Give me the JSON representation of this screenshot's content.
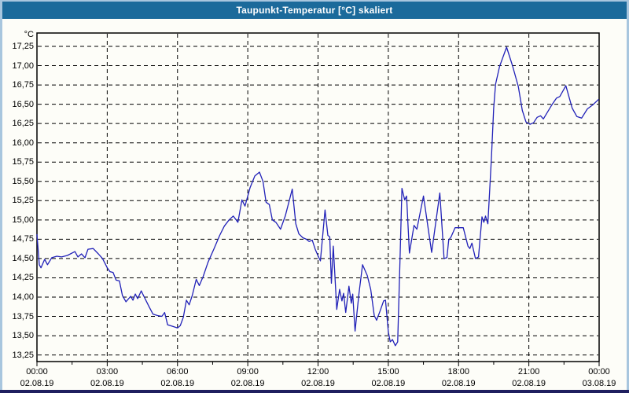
{
  "window": {
    "title": "Taupunkt-Temperatur [°C] skaliert",
    "title_bar_color": "#1b6a9b",
    "border_color": "#a8c6de",
    "bottom_border_color": "#1f1f5f",
    "background": "#fdfdf8"
  },
  "chart_data": {
    "type": "line",
    "title": "Taupunkt-Temperatur [°C] skaliert",
    "y_unit_label": "°C",
    "ylim": [
      13.25,
      17.25
    ],
    "xlim_hours": [
      0,
      24
    ],
    "grid": "dashed",
    "legend": "none",
    "line_color": "#2121b8",
    "plot_background": "#fdfdf8",
    "y_ticks": [
      "17,25",
      "17,00",
      "16,75",
      "16,50",
      "16,25",
      "16,00",
      "15,75",
      "15,50",
      "15,25",
      "15,00",
      "14,75",
      "14,50",
      "14,25",
      "14,00",
      "13,75",
      "13,50",
      "13,25"
    ],
    "x_ticks": [
      {
        "time": "00:00",
        "date": "02.08.19"
      },
      {
        "time": "03:00",
        "date": "02.08.19"
      },
      {
        "time": "06:00",
        "date": "02.08.19"
      },
      {
        "time": "09:00",
        "date": "02.08.19"
      },
      {
        "time": "12:00",
        "date": "02.08.19"
      },
      {
        "time": "15:00",
        "date": "02.08.19"
      },
      {
        "time": "18:00",
        "date": "02.08.19"
      },
      {
        "time": "21:00",
        "date": "02.08.19"
      },
      {
        "time": "00:00",
        "date": "03.08.19"
      }
    ],
    "series": [
      {
        "name": "Taupunkt-Temperatur",
        "points": [
          [
            0.0,
            14.81
          ],
          [
            0.1,
            14.42
          ],
          [
            0.17,
            14.38
          ],
          [
            0.33,
            14.49
          ],
          [
            0.45,
            14.42
          ],
          [
            0.63,
            14.51
          ],
          [
            0.85,
            14.53
          ],
          [
            1.05,
            14.52
          ],
          [
            1.3,
            14.54
          ],
          [
            1.62,
            14.59
          ],
          [
            1.75,
            14.52
          ],
          [
            1.9,
            14.56
          ],
          [
            2.05,
            14.51
          ],
          [
            2.18,
            14.62
          ],
          [
            2.4,
            14.63
          ],
          [
            2.62,
            14.56
          ],
          [
            2.8,
            14.5
          ],
          [
            3.0,
            14.38
          ],
          [
            3.12,
            14.33
          ],
          [
            3.25,
            14.32
          ],
          [
            3.38,
            14.22
          ],
          [
            3.52,
            14.21
          ],
          [
            3.65,
            14.02
          ],
          [
            3.8,
            13.94
          ],
          [
            4.0,
            14.01
          ],
          [
            4.1,
            13.96
          ],
          [
            4.2,
            14.04
          ],
          [
            4.3,
            13.98
          ],
          [
            4.45,
            14.08
          ],
          [
            4.6,
            13.99
          ],
          [
            4.78,
            13.88
          ],
          [
            4.95,
            13.78
          ],
          [
            5.15,
            13.76
          ],
          [
            5.33,
            13.75
          ],
          [
            5.45,
            13.8
          ],
          [
            5.58,
            13.64
          ],
          [
            5.8,
            13.62
          ],
          [
            6.0,
            13.6
          ],
          [
            6.12,
            13.63
          ],
          [
            6.25,
            13.74
          ],
          [
            6.38,
            13.96
          ],
          [
            6.5,
            13.9
          ],
          [
            6.63,
            14.02
          ],
          [
            6.8,
            14.23
          ],
          [
            6.93,
            14.15
          ],
          [
            7.1,
            14.27
          ],
          [
            7.3,
            14.45
          ],
          [
            7.55,
            14.62
          ],
          [
            7.8,
            14.8
          ],
          [
            8.0,
            14.92
          ],
          [
            8.2,
            15.0
          ],
          [
            8.38,
            15.05
          ],
          [
            8.58,
            14.97
          ],
          [
            8.75,
            15.26
          ],
          [
            8.88,
            15.18
          ],
          [
            9.1,
            15.42
          ],
          [
            9.3,
            15.57
          ],
          [
            9.5,
            15.62
          ],
          [
            9.65,
            15.5
          ],
          [
            9.78,
            15.23
          ],
          [
            9.92,
            15.2
          ],
          [
            10.05,
            15.0
          ],
          [
            10.2,
            14.97
          ],
          [
            10.4,
            14.88
          ],
          [
            10.6,
            15.05
          ],
          [
            10.9,
            15.4
          ],
          [
            11.05,
            14.95
          ],
          [
            11.18,
            14.82
          ],
          [
            11.35,
            14.77
          ],
          [
            11.5,
            14.75
          ],
          [
            11.62,
            14.72
          ],
          [
            11.75,
            14.74
          ],
          [
            11.88,
            14.62
          ],
          [
            12.02,
            14.52
          ],
          [
            12.1,
            14.47
          ],
          [
            12.3,
            15.13
          ],
          [
            12.42,
            14.8
          ],
          [
            12.5,
            14.78
          ],
          [
            12.57,
            14.18
          ],
          [
            12.65,
            14.66
          ],
          [
            12.8,
            13.84
          ],
          [
            12.92,
            14.1
          ],
          [
            13.02,
            13.95
          ],
          [
            13.09,
            14.05
          ],
          [
            13.18,
            13.8
          ],
          [
            13.32,
            14.14
          ],
          [
            13.42,
            13.92
          ],
          [
            13.48,
            14.04
          ],
          [
            13.58,
            13.56
          ],
          [
            13.75,
            14.05
          ],
          [
            13.9,
            14.42
          ],
          [
            14.1,
            14.28
          ],
          [
            14.25,
            14.1
          ],
          [
            14.4,
            13.76
          ],
          [
            14.5,
            13.7
          ],
          [
            14.65,
            13.82
          ],
          [
            14.8,
            13.95
          ],
          [
            14.88,
            13.96
          ],
          [
            15.0,
            13.55
          ],
          [
            15.08,
            13.42
          ],
          [
            15.18,
            13.45
          ],
          [
            15.3,
            13.37
          ],
          [
            15.4,
            13.42
          ],
          [
            15.5,
            14.5
          ],
          [
            15.58,
            15.41
          ],
          [
            15.7,
            15.26
          ],
          [
            15.78,
            15.31
          ],
          [
            15.9,
            14.57
          ],
          [
            16.1,
            14.93
          ],
          [
            16.22,
            14.88
          ],
          [
            16.5,
            15.31
          ],
          [
            16.85,
            14.58
          ],
          [
            17.2,
            15.35
          ],
          [
            17.38,
            14.5
          ],
          [
            17.5,
            14.51
          ],
          [
            17.58,
            14.74
          ],
          [
            17.68,
            14.78
          ],
          [
            17.85,
            14.9
          ],
          [
            18.2,
            14.9
          ],
          [
            18.4,
            14.66
          ],
          [
            18.48,
            14.63
          ],
          [
            18.57,
            14.7
          ],
          [
            18.72,
            14.5
          ],
          [
            18.85,
            14.52
          ],
          [
            19.0,
            15.04
          ],
          [
            19.08,
            14.97
          ],
          [
            19.15,
            15.05
          ],
          [
            19.25,
            14.95
          ],
          [
            19.4,
            15.8
          ],
          [
            19.5,
            16.45
          ],
          [
            19.58,
            16.76
          ],
          [
            19.75,
            16.99
          ],
          [
            20.05,
            17.24
          ],
          [
            20.3,
            17.0
          ],
          [
            20.55,
            16.73
          ],
          [
            20.72,
            16.42
          ],
          [
            20.88,
            16.27
          ],
          [
            21.05,
            16.24
          ],
          [
            21.2,
            16.26
          ],
          [
            21.35,
            16.33
          ],
          [
            21.5,
            16.35
          ],
          [
            21.62,
            16.31
          ],
          [
            22.0,
            16.5
          ],
          [
            22.18,
            16.58
          ],
          [
            22.32,
            16.6
          ],
          [
            22.58,
            16.74
          ],
          [
            22.85,
            16.45
          ],
          [
            23.05,
            16.34
          ],
          [
            23.25,
            16.32
          ],
          [
            23.5,
            16.44
          ],
          [
            23.72,
            16.49
          ],
          [
            23.97,
            16.56
          ]
        ]
      }
    ]
  }
}
